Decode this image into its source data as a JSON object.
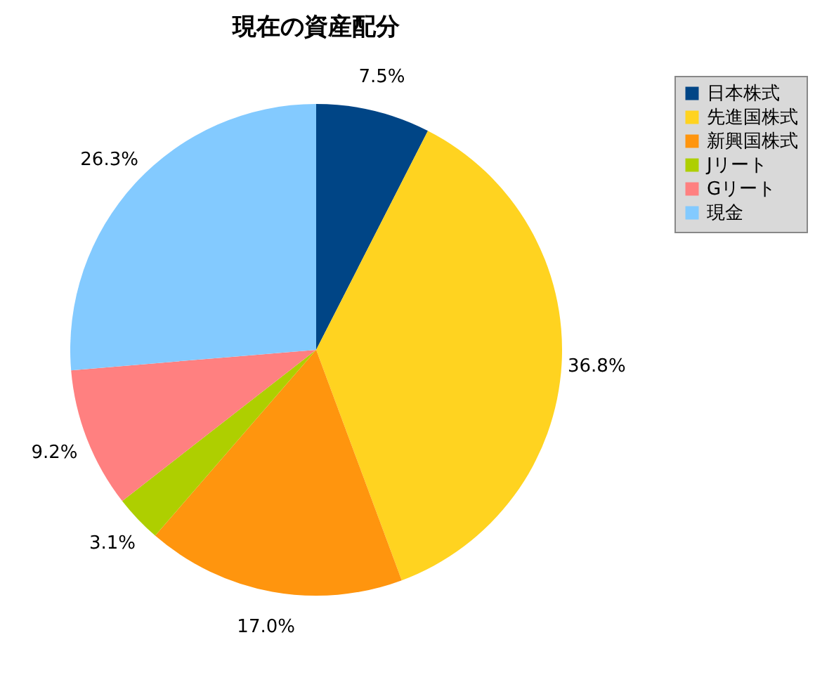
{
  "chart_data": {
    "type": "pie",
    "title": "現在の資産配分",
    "categories": [
      "日本株式",
      "先進国株式",
      "新興国株式",
      "Jリート",
      "Gリート",
      "現金"
    ],
    "values": [
      7.5,
      36.8,
      17.0,
      3.1,
      9.2,
      26.3
    ],
    "value_labels": [
      "7.5%",
      "36.8%",
      "17.0%",
      "3.1%",
      "9.2%",
      "26.3%"
    ],
    "colors": [
      "#004586",
      "#ffd320",
      "#ff950e",
      "#aecf00",
      "#ff8080",
      "#83caff"
    ],
    "legend": "right"
  }
}
